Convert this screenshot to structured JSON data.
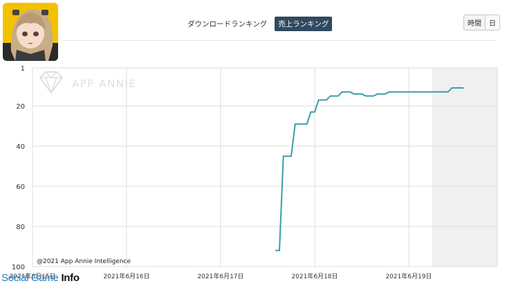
{
  "tabs": [
    {
      "label": "ダウンロードランキング",
      "active": false
    },
    {
      "label": "売上ランキング",
      "active": true
    }
  ],
  "granularity": {
    "hour_label": "時間",
    "day_label": "日"
  },
  "watermark": {
    "text": "APP ANNIE"
  },
  "copyright": "@2021 App Annie Intelligence",
  "brand": {
    "part1": "Social Game ",
    "part2": "Info"
  },
  "colors": {
    "line": "#3a9da6",
    "shade": "#f0f0f0",
    "grid": "#dddddd",
    "active_tab": "#2f4a60"
  },
  "chart_data": {
    "type": "line",
    "title": "売上ランキング",
    "y_inverted": true,
    "ylim": [
      1,
      100
    ],
    "yticks": [
      "1",
      "20",
      "40",
      "60",
      "80",
      "100"
    ],
    "xticks": [
      "2021年6月15日",
      "2021年6月16日",
      "2021年6月17日",
      "2021年6月18日",
      "2021年6月19日"
    ],
    "grid": true,
    "shaded_from": "2021年6月19日 06:00",
    "series": [
      {
        "values": [
          {
            "x": "2021-06-17 14:00",
            "y": 92
          },
          {
            "x": "2021-06-17 15:00",
            "y": 92
          },
          {
            "x": "2021-06-17 16:00",
            "y": 45
          },
          {
            "x": "2021-06-17 18:00",
            "y": 45
          },
          {
            "x": "2021-06-17 19:00",
            "y": 29
          },
          {
            "x": "2021-06-17 22:00",
            "y": 29
          },
          {
            "x": "2021-06-17 23:00",
            "y": 23
          },
          {
            "x": "2021-06-18 00:00",
            "y": 23
          },
          {
            "x": "2021-06-18 01:00",
            "y": 17
          },
          {
            "x": "2021-06-18 03:00",
            "y": 17
          },
          {
            "x": "2021-06-18 04:00",
            "y": 15
          },
          {
            "x": "2021-06-18 06:00",
            "y": 15
          },
          {
            "x": "2021-06-18 07:00",
            "y": 13
          },
          {
            "x": "2021-06-18 09:00",
            "y": 13
          },
          {
            "x": "2021-06-18 10:00",
            "y": 14
          },
          {
            "x": "2021-06-18 12:00",
            "y": 14
          },
          {
            "x": "2021-06-18 13:00",
            "y": 15
          },
          {
            "x": "2021-06-18 15:00",
            "y": 15
          },
          {
            "x": "2021-06-18 16:00",
            "y": 14
          },
          {
            "x": "2021-06-18 18:00",
            "y": 14
          },
          {
            "x": "2021-06-18 19:00",
            "y": 13
          },
          {
            "x": "2021-06-19 10:00",
            "y": 13
          },
          {
            "x": "2021-06-19 11:00",
            "y": 11
          },
          {
            "x": "2021-06-19 14:00",
            "y": 11
          }
        ]
      }
    ]
  }
}
